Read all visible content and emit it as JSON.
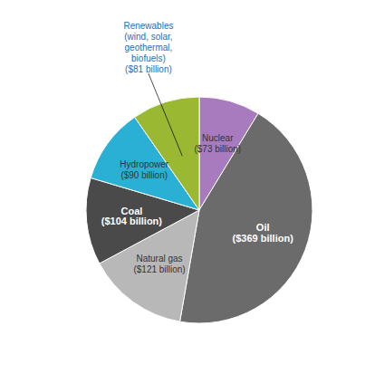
{
  "chart_data": {
    "type": "pie",
    "categories": [
      "Nuclear\n($73 billion)",
      "Oil\n($369 billion)",
      "Natural gas\n($121 billion)",
      "Coal\n($104 billion)",
      "Hydropower\n($90 billion)",
      "Renewables\n(wind, solar,\ngeothermal,\nbiofuels)\n($81 billion)"
    ],
    "values": [
      73,
      369,
      121,
      104,
      90,
      81
    ],
    "colors": [
      "#a87bbf",
      "#6b6b6b",
      "#b8b8b8",
      "#4a4a4a",
      "#2ab0d4",
      "#9ab832"
    ]
  }
}
